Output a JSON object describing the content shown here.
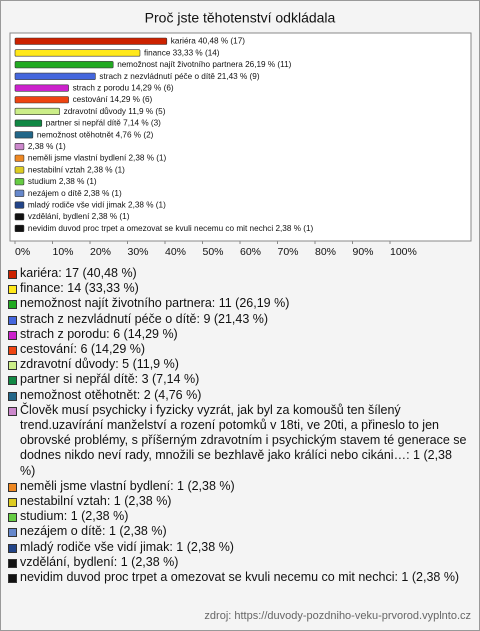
{
  "chart_data": {
    "type": "bar",
    "orientation": "horizontal",
    "title": "Proč jste těhotenství odkládala",
    "values": [
      40.48,
      33.33,
      26.19,
      21.43,
      14.29,
      14.29,
      11.9,
      7.14,
      4.76,
      2.38,
      2.38,
      2.38,
      2.38,
      2.38,
      2.38,
      2.38,
      2.38
    ],
    "value_labels": [
      "kariéra 40,48 % (17)",
      "finance 33,33 % (14)",
      "nemožnost najít životního partnera 26,19 % (11)",
      "strach z nezvládnutí péče o dítě 21,43 % (9)",
      "strach z porodu 14,29 % (6)",
      "cestování 14,29 % (6)",
      "zdravotní důvody 11,9 % (5)",
      "partner si nepřál dítě 7,14 % (3)",
      "nemožnost otěhotnět 4,76 % (2)",
      "2,38 % (1)",
      "neměli jsme vlastní bydlení 2,38 % (1)",
      "nestabilní vztah 2,38 % (1)",
      "studium 2,38 % (1)",
      "nezájem o dítě 2,38 % (1)",
      "mladý rodiče vše vidí jimak 2,38 % (1)",
      "vzdělání, bydlení 2,38 % (1)",
      "nevidim duvod proc trpet a omezovat se kvuli necemu co mit nechci 2,38 % (1)"
    ],
    "colors": [
      "#cc2200",
      "#ffe81a",
      "#22aa22",
      "#4466dd",
      "#cc22cc",
      "#ee4411",
      "#ccee88",
      "#118844",
      "#226688",
      "#cc88cc",
      "#ee8822",
      "#ddcc22",
      "#66cc44",
      "#6688cc",
      "#224488",
      "#111111",
      "#111111"
    ],
    "legend": [
      "kariéra: 17 (40,48 %)",
      "finance: 14 (33,33 %)",
      "nemožnost najít životního partnera: 11 (26,19 %)",
      "strach z nezvládnutí péče o dítě: 9 (21,43 %)",
      "strach z porodu: 6 (14,29 %)",
      "cestování: 6 (14,29 %)",
      "zdravotní důvody: 5 (11,9 %)",
      "partner si nepřál dítě: 3 (7,14 %)",
      "nemožnost otěhotnět: 2 (4,76 %)",
      "Člověk musí psychicky i fyzicky vyzrát, jak byl za komoušů ten šílený trend.uzavírání manželství a rození potomků v 18ti, ve 20ti, a přineslo to jen obrovské problémy, s příšerným zdravotním i psychickým stavem té generace se dodnes nikdo neví rady, množili se bezhlavě jako králíci nebo cikáni…: 1 (2,38 %)",
      "neměli jsme vlastní bydlení: 1 (2,38 %)",
      "nestabilní vztah: 1 (2,38 %)",
      "studium: 1 (2,38 %)",
      "nezájem o dítě: 1 (2,38 %)",
      "mladý rodiče vše vidí jimak: 1 (2,38 %)",
      "vzdělání, bydlení: 1 (2,38 %)",
      "nevidim duvod proc trpet a omezovat se kvuli necemu co mit nechci: 1 (2,38 %)"
    ],
    "xlim": [
      0,
      120
    ],
    "xticks": [
      {
        "value": 0,
        "label": "0%"
      },
      {
        "value": 10,
        "label": "10%"
      },
      {
        "value": 20,
        "label": "20%"
      },
      {
        "value": 30,
        "label": "30%"
      },
      {
        "value": 40,
        "label": "40%"
      },
      {
        "value": 50,
        "label": "50%"
      },
      {
        "value": 60,
        "label": "60%"
      },
      {
        "value": 70,
        "label": "70%"
      },
      {
        "value": 80,
        "label": "80%"
      },
      {
        "value": 90,
        "label": "90%"
      },
      {
        "value": 100,
        "label": "100%"
      }
    ],
    "source": "zdroj: https://duvody-pozdniho-veku-prvorod.vyplnto.cz"
  }
}
